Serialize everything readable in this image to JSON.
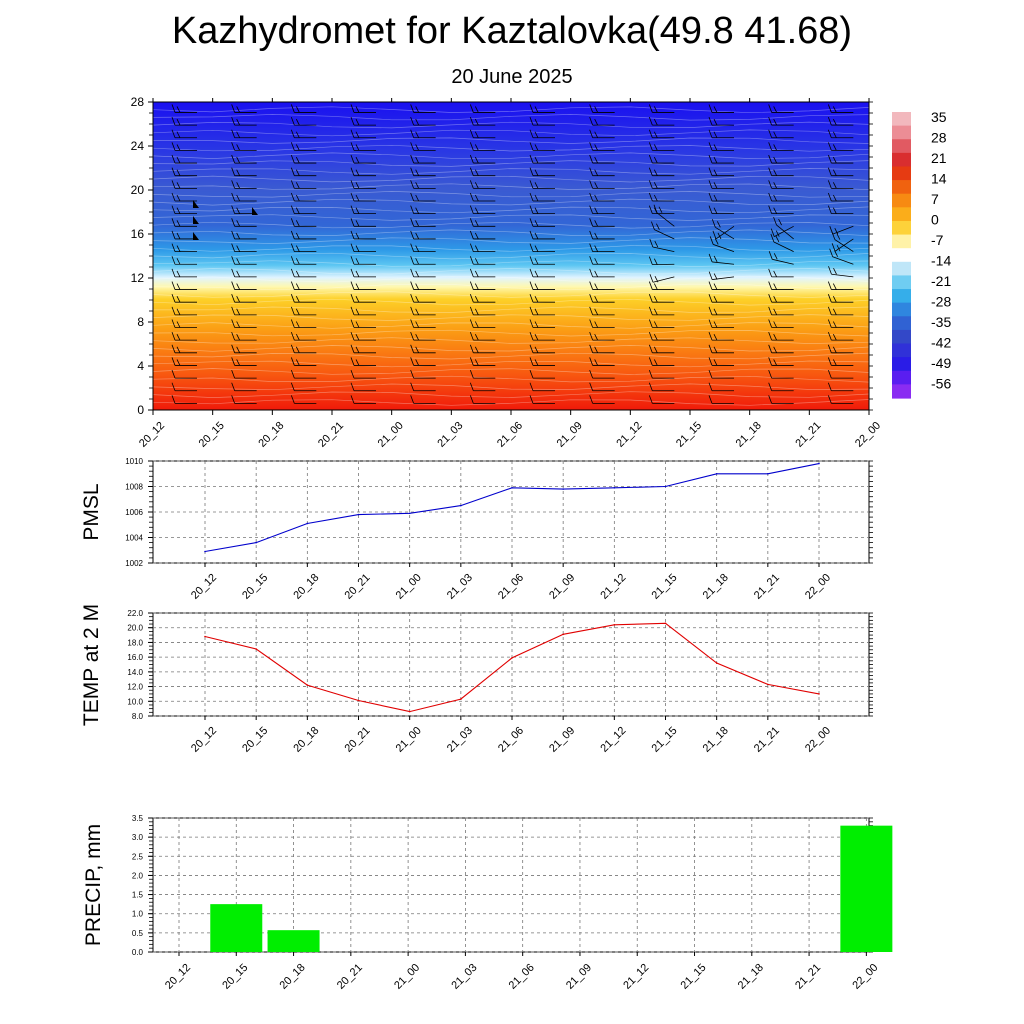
{
  "header": {
    "title": "Kazhydromet for Kaztalovka(49.8 41.68)",
    "subtitle": "20 June 2025"
  },
  "colors": {
    "pmsl_line": "#0000cc",
    "temp_line": "#e00000",
    "precip_bar": "#00ee00",
    "wind_barb": "#000000"
  },
  "chart_data": [
    {
      "type": "heatmap",
      "name": "temperature-cross-section",
      "title": "",
      "xlabel": "",
      "ylabel": "",
      "x": [
        "20_12",
        "20_15",
        "20_18",
        "20_21",
        "21_00",
        "21_03",
        "21_06",
        "21_09",
        "21_12",
        "21_15",
        "21_18",
        "21_21",
        "22_00"
      ],
      "y_ticks": [
        0,
        4,
        8,
        12,
        16,
        20,
        24,
        28
      ],
      "ylim": [
        0,
        28
      ],
      "colorbar_labels": [
        "35",
        "28",
        "21",
        "14",
        "7",
        "0",
        "-7",
        "-14",
        "-21",
        "-28",
        "-35",
        "-42",
        "-49",
        "-56"
      ],
      "colorbar_range": [
        -63,
        42
      ],
      "overlay": "wind barbs",
      "grid": false
    },
    {
      "type": "line",
      "name": "pmsl",
      "ylabel": "PMSL",
      "x": [
        "20_12",
        "20_15",
        "20_18",
        "20_21",
        "21_00",
        "21_03",
        "21_06",
        "21_09",
        "21_12",
        "21_15",
        "21_18",
        "21_21",
        "22_00"
      ],
      "values": [
        1002.9,
        1003.6,
        1005.1,
        1005.8,
        1005.9,
        1006.5,
        1007.9,
        1007.8,
        1007.9,
        1008.0,
        1009.0,
        1009.0,
        1009.8
      ],
      "ylim": [
        1002,
        1010
      ],
      "y_ticks": [
        "1002",
        "1004",
        "1006",
        "1008",
        "1010"
      ],
      "grid": true
    },
    {
      "type": "line",
      "name": "temp-2m",
      "ylabel": "TEMP at 2 M",
      "x": [
        "20_12",
        "20_15",
        "20_18",
        "20_21",
        "21_00",
        "21_03",
        "21_06",
        "21_09",
        "21_12",
        "21_15",
        "21_18",
        "21_21",
        "22_00"
      ],
      "values": [
        18.8,
        17.1,
        12.2,
        10.1,
        8.6,
        10.3,
        15.9,
        19.1,
        20.4,
        20.6,
        15.2,
        12.3,
        11.0
      ],
      "ylim": [
        8,
        22
      ],
      "y_ticks": [
        "8.0",
        "10.0",
        "12.0",
        "14.0",
        "16.0",
        "18.0",
        "20.0",
        "22.0"
      ],
      "grid": true
    },
    {
      "type": "bar",
      "name": "precip",
      "ylabel": "PRECIP, mm",
      "categories": [
        "20_12",
        "20_15",
        "20_18",
        "20_21",
        "21_00",
        "21_03",
        "21_06",
        "21_09",
        "21_12",
        "21_15",
        "21_18",
        "21_21",
        "22_00"
      ],
      "values": [
        0,
        1.25,
        0.57,
        0,
        0,
        0,
        0,
        0,
        0,
        0,
        0,
        0,
        3.3
      ],
      "ylim": [
        0,
        3.5
      ],
      "y_ticks": [
        "0.0",
        "0.5",
        "1.0",
        "1.5",
        "2.0",
        "2.5",
        "3.0",
        "3.5"
      ],
      "grid": true
    }
  ]
}
